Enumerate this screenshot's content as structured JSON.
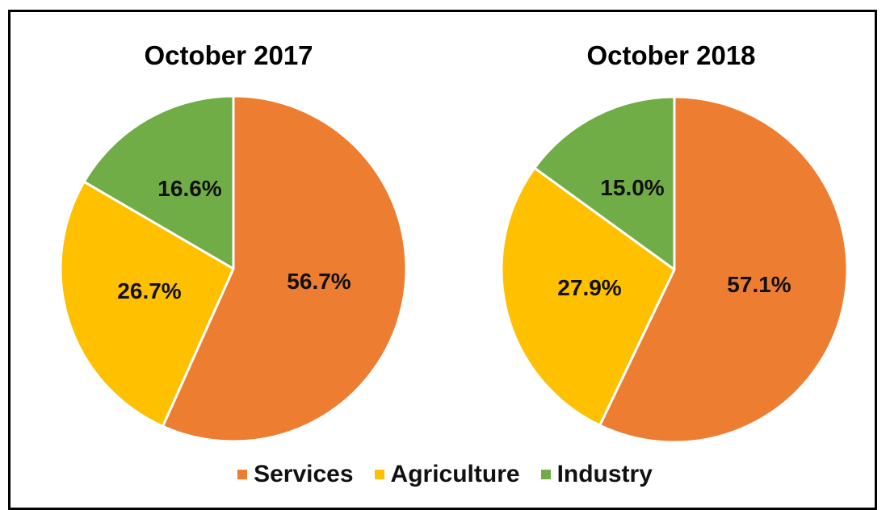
{
  "chart_data": [
    {
      "type": "pie",
      "title": "October 2017",
      "slices": [
        {
          "name": "Services",
          "value": 56.7,
          "label": "56.7%",
          "color": "#ED7D31"
        },
        {
          "name": "Agriculture",
          "value": 26.7,
          "label": "26.7%",
          "color": "#FFC000"
        },
        {
          "name": "Industry",
          "value": 16.6,
          "label": "16.6%",
          "color": "#70AD47"
        }
      ]
    },
    {
      "type": "pie",
      "title": "October 2018",
      "slices": [
        {
          "name": "Services",
          "value": 57.1,
          "label": "57.1%",
          "color": "#ED7D31"
        },
        {
          "name": "Agriculture",
          "value": 27.9,
          "label": "27.9%",
          "color": "#FFC000"
        },
        {
          "name": "Industry",
          "value": 15.0,
          "label": "15.0%",
          "color": "#70AD47"
        }
      ]
    }
  ],
  "legend": {
    "placement": "bottom",
    "items": [
      {
        "label": "Services",
        "color": "#ED7D31"
      },
      {
        "label": "Agriculture",
        "color": "#FFC000"
      },
      {
        "label": "Industry",
        "color": "#70AD47"
      }
    ]
  }
}
